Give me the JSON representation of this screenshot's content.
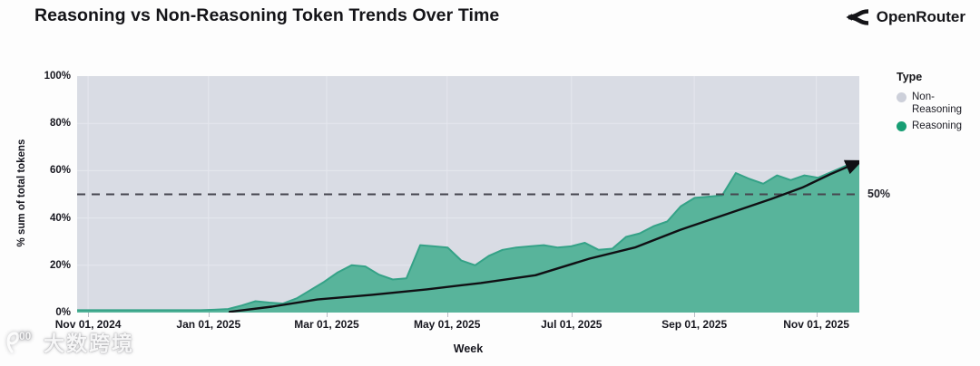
{
  "header": {
    "title": "Reasoning vs Non-Reasoning Token Trends Over Time",
    "brand": {
      "name": "OpenRouter"
    }
  },
  "chart_data": {
    "type": "area",
    "stacked_percent": true,
    "title": "Reasoning vs Non-Reasoning Token Trends Over Time",
    "xlabel": "Week",
    "ylabel": "% sum of total tokens",
    "ylim": [
      0,
      100
    ],
    "grid": true,
    "grid_color": "#e5e7ee",
    "plot_bg": "#d9dce4",
    "y_ticks": [
      {
        "label": "0%",
        "v": 0
      },
      {
        "label": "20%",
        "v": 20
      },
      {
        "label": "40%",
        "v": 40
      },
      {
        "label": "60%",
        "v": 60
      },
      {
        "label": "80%",
        "v": 80
      },
      {
        "label": "100%",
        "v": 100
      }
    ],
    "x_ticks": [
      {
        "label": "Nov 01, 2024",
        "f": 0.014
      },
      {
        "label": "Jan 01, 2025",
        "f": 0.168
      },
      {
        "label": "Mar 01, 2025",
        "f": 0.319
      },
      {
        "label": "May 01, 2025",
        "f": 0.473
      },
      {
        "label": "Jul 01, 2025",
        "f": 0.632
      },
      {
        "label": "Sep 01, 2025",
        "f": 0.789
      },
      {
        "label": "Nov 01, 2025",
        "f": 0.945
      }
    ],
    "series": [
      {
        "name": "Non-Reasoning",
        "role": "remainder-to-100%",
        "color": "#d9dce4"
      },
      {
        "name": "Reasoning",
        "color": "#58b49b",
        "stroke": "#35a287",
        "unit": "% of total tokens, weekly",
        "values": [
          1,
          1,
          1,
          1,
          1,
          1,
          1,
          1,
          1,
          1,
          1.2,
          1.5,
          3,
          4.8,
          4.2,
          3.8,
          6,
          9.5,
          13,
          17,
          20,
          19.5,
          16,
          14,
          14.5,
          28.5,
          28,
          27.5,
          22,
          20,
          24,
          26.5,
          27.5,
          28,
          28.5,
          27.5,
          28,
          29.5,
          26.5,
          27,
          32,
          33.5,
          36.5,
          38.5,
          45,
          48.5,
          49,
          49.5,
          59,
          56.5,
          54.5,
          58,
          56,
          58,
          57,
          59.5,
          62,
          64
        ]
      }
    ],
    "reference_line": {
      "value": 50,
      "label": "50%",
      "color": "#46464f",
      "style": "dashed"
    },
    "trend_arrow": {
      "color": "#101014",
      "points": [
        [
          0.195,
          0.3
        ],
        [
          0.249,
          2.5
        ],
        [
          0.307,
          5.5
        ],
        [
          0.377,
          7.5
        ],
        [
          0.447,
          9.8
        ],
        [
          0.516,
          12.5
        ],
        [
          0.586,
          15.8
        ],
        [
          0.655,
          22.8
        ],
        [
          0.713,
          27.5
        ],
        [
          0.771,
          35
        ],
        [
          0.829,
          41.5
        ],
        [
          0.887,
          48
        ],
        [
          0.928,
          53
        ],
        [
          0.963,
          58.5
        ],
        [
          0.998,
          63.5
        ]
      ]
    },
    "legend": {
      "title": "Type",
      "position": "right",
      "items": [
        {
          "label": "Non-Reasoning",
          "color": "#cdd0da"
        },
        {
          "label": "Reasoning",
          "color": "#189e74"
        }
      ]
    }
  },
  "watermark": {
    "logo_text": "100",
    "text": "大数跨境"
  }
}
